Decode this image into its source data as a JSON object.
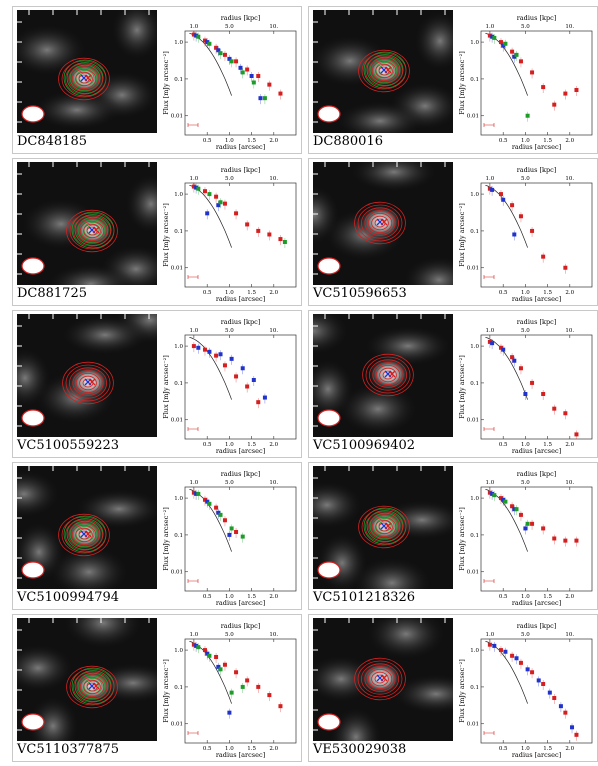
{
  "figure": {
    "xaxis_bottom": {
      "label": "radius [arcsec]",
      "ticks": [
        "0.5",
        "1.0",
        "1.5",
        "2.0"
      ]
    },
    "xaxis_top": {
      "label": "radius [kpc]",
      "ticks": [
        "1.0",
        "5.0",
        "10."
      ]
    },
    "yaxis": {
      "label": "Flux [mJy arcsec⁻²]",
      "ticks": [
        "1.0",
        "0.1",
        "0.01"
      ]
    }
  },
  "colors": {
    "red": "#d42020",
    "blue": "#2233cc",
    "green": "#1e9c2a",
    "curve": "#222222"
  },
  "chart_data": [
    {
      "type": "scatter",
      "name_label": "DC848185",
      "has_green": true,
      "yscale": "log",
      "xlim": [
        0,
        2.5
      ],
      "ylim": [
        0.003,
        2
      ],
      "series": [
        {
          "color": "red",
          "x": [
            0.2,
            0.45,
            0.7,
            0.9,
            1.15,
            1.4,
            1.65,
            1.9,
            2.15
          ],
          "y": [
            1.6,
            1.1,
            0.7,
            0.45,
            0.3,
            0.18,
            0.12,
            0.07,
            0.04
          ]
        },
        {
          "color": "blue",
          "x": [
            0.25,
            0.5,
            0.75,
            1.0,
            1.25,
            1.5,
            1.7
          ],
          "y": [
            1.5,
            1.0,
            0.6,
            0.35,
            0.2,
            0.12,
            0.03
          ]
        },
        {
          "color": "green",
          "x": [
            0.3,
            0.55,
            0.8,
            1.05,
            1.3,
            1.55,
            1.8
          ],
          "y": [
            1.4,
            0.9,
            0.5,
            0.3,
            0.15,
            0.08,
            0.03
          ]
        }
      ]
    },
    {
      "type": "scatter",
      "name_label": "DC880016",
      "has_green": true,
      "yscale": "log",
      "xlim": [
        0,
        2.5
      ],
      "ylim": [
        0.003,
        2
      ],
      "series": [
        {
          "color": "red",
          "x": [
            0.2,
            0.45,
            0.7,
            0.9,
            1.15,
            1.4,
            1.65,
            1.9,
            2.15
          ],
          "y": [
            1.5,
            1.0,
            0.55,
            0.3,
            0.15,
            0.06,
            0.02,
            0.04,
            0.05
          ]
        },
        {
          "color": "blue",
          "x": [
            0.25,
            0.5,
            0.75
          ],
          "y": [
            1.4,
            0.8,
            0.4
          ]
        },
        {
          "color": "green",
          "x": [
            0.3,
            0.55,
            0.8,
            1.05
          ],
          "y": [
            1.3,
            0.9,
            0.45,
            0.01
          ]
        }
      ]
    },
    {
      "type": "scatter",
      "name_label": "DC881725",
      "has_green": true,
      "yscale": "log",
      "xlim": [
        0,
        2.5
      ],
      "ylim": [
        0.003,
        2
      ],
      "series": [
        {
          "color": "red",
          "x": [
            0.2,
            0.45,
            0.7,
            0.9,
            1.15,
            1.4,
            1.65,
            1.9,
            2.15
          ],
          "y": [
            1.6,
            1.2,
            0.85,
            0.55,
            0.3,
            0.15,
            0.1,
            0.08,
            0.06
          ]
        },
        {
          "color": "blue",
          "x": [
            0.25,
            0.5,
            0.75
          ],
          "y": [
            1.5,
            0.3,
            0.5
          ]
        },
        {
          "color": "green",
          "x": [
            0.3,
            0.55,
            0.8,
            2.25
          ],
          "y": [
            1.4,
            1.0,
            0.6,
            0.05
          ]
        }
      ]
    },
    {
      "type": "scatter",
      "name_label": "VC510596653",
      "has_green": false,
      "yscale": "log",
      "xlim": [
        0,
        2.5
      ],
      "ylim": [
        0.003,
        2
      ],
      "series": [
        {
          "color": "red",
          "x": [
            0.2,
            0.45,
            0.7,
            0.9,
            1.15,
            1.4,
            1.9
          ],
          "y": [
            1.4,
            1.0,
            0.5,
            0.25,
            0.1,
            0.02,
            0.01
          ]
        },
        {
          "color": "blue",
          "x": [
            0.25,
            0.5,
            0.75
          ],
          "y": [
            1.3,
            0.7,
            0.08
          ]
        }
      ]
    },
    {
      "type": "scatter",
      "name_label": "VC5100559223",
      "has_green": false,
      "yscale": "log",
      "xlim": [
        0,
        2.5
      ],
      "ylim": [
        0.003,
        2
      ],
      "series": [
        {
          "color": "red",
          "x": [
            0.2,
            0.45,
            0.7,
            0.9,
            1.15,
            1.4,
            1.65
          ],
          "y": [
            1.0,
            0.8,
            0.55,
            0.3,
            0.15,
            0.08,
            0.03
          ]
        },
        {
          "color": "blue",
          "x": [
            0.3,
            0.55,
            0.8,
            1.05,
            1.3,
            1.55,
            1.8
          ],
          "y": [
            0.9,
            0.7,
            0.6,
            0.45,
            0.25,
            0.12,
            0.04
          ]
        }
      ]
    },
    {
      "type": "scatter",
      "name_label": "VC5100969402",
      "has_green": false,
      "yscale": "log",
      "xlim": [
        0,
        2.5
      ],
      "ylim": [
        0.003,
        2
      ],
      "series": [
        {
          "color": "red",
          "x": [
            0.2,
            0.45,
            0.7,
            0.9,
            1.15,
            1.4,
            1.65,
            1.9,
            2.15
          ],
          "y": [
            1.3,
            0.9,
            0.5,
            0.25,
            0.1,
            0.05,
            0.02,
            0.015,
            0.004
          ]
        },
        {
          "color": "blue",
          "x": [
            0.25,
            0.5,
            0.75,
            1.0
          ],
          "y": [
            1.2,
            0.8,
            0.4,
            0.05
          ]
        }
      ]
    },
    {
      "type": "scatter",
      "name_label": "VC5100994794",
      "has_green": true,
      "yscale": "log",
      "xlim": [
        0,
        2.5
      ],
      "ylim": [
        0.003,
        2
      ],
      "series": [
        {
          "color": "red",
          "x": [
            0.2,
            0.45,
            0.7,
            0.9,
            1.15
          ],
          "y": [
            1.4,
            0.9,
            0.55,
            0.25,
            0.12
          ]
        },
        {
          "color": "blue",
          "x": [
            0.25,
            0.5,
            0.75,
            1.0
          ],
          "y": [
            1.3,
            0.8,
            0.4,
            0.1
          ]
        },
        {
          "color": "green",
          "x": [
            0.3,
            0.55,
            0.8,
            1.05,
            1.3
          ],
          "y": [
            1.3,
            0.7,
            0.35,
            0.15,
            0.09
          ]
        }
      ]
    },
    {
      "type": "scatter",
      "name_label": "VC5101218326",
      "has_green": true,
      "yscale": "log",
      "xlim": [
        0,
        2.5
      ],
      "ylim": [
        0.003,
        2
      ],
      "series": [
        {
          "color": "red",
          "x": [
            0.2,
            0.45,
            0.7,
            0.9,
            1.15,
            1.4,
            1.65,
            1.9,
            2.15
          ],
          "y": [
            1.4,
            1.0,
            0.6,
            0.35,
            0.2,
            0.15,
            0.08,
            0.07,
            0.07
          ]
        },
        {
          "color": "blue",
          "x": [
            0.25,
            0.5,
            0.75,
            1.0
          ],
          "y": [
            1.3,
            0.9,
            0.5,
            0.15
          ]
        },
        {
          "color": "green",
          "x": [
            0.3,
            0.55,
            0.8,
            1.05
          ],
          "y": [
            1.2,
            0.8,
            0.5,
            0.2
          ]
        }
      ]
    },
    {
      "type": "scatter",
      "name_label": "VC5110377875",
      "has_green": true,
      "yscale": "log",
      "xlim": [
        0,
        2.5
      ],
      "ylim": [
        0.003,
        2
      ],
      "series": [
        {
          "color": "red",
          "x": [
            0.2,
            0.45,
            0.7,
            0.9,
            1.15,
            1.4,
            1.65,
            1.9,
            2.15
          ],
          "y": [
            1.4,
            1.0,
            0.65,
            0.4,
            0.25,
            0.15,
            0.1,
            0.06,
            0.03
          ]
        },
        {
          "color": "blue",
          "x": [
            0.25,
            0.5,
            0.75,
            1.0
          ],
          "y": [
            1.3,
            0.8,
            0.35,
            0.02
          ]
        },
        {
          "color": "green",
          "x": [
            0.3,
            0.55,
            0.8,
            1.05,
            1.3
          ],
          "y": [
            1.2,
            0.7,
            0.3,
            0.07,
            0.1
          ]
        }
      ]
    },
    {
      "type": "scatter",
      "name_label": "VE530029038",
      "has_green": false,
      "yscale": "log",
      "xlim": [
        0,
        2.5
      ],
      "ylim": [
        0.003,
        2
      ],
      "series": [
        {
          "color": "red",
          "x": [
            0.2,
            0.45,
            0.7,
            0.9,
            1.15,
            1.4,
            1.65,
            1.9,
            2.15
          ],
          "y": [
            1.4,
            1.0,
            0.7,
            0.45,
            0.25,
            0.12,
            0.05,
            0.02,
            0.005
          ]
        },
        {
          "color": "blue",
          "x": [
            0.3,
            0.55,
            0.8,
            1.05,
            1.3,
            1.55,
            1.8,
            2.05
          ],
          "y": [
            1.3,
            0.9,
            0.6,
            0.3,
            0.15,
            0.07,
            0.03,
            0.008
          ]
        }
      ]
    }
  ]
}
